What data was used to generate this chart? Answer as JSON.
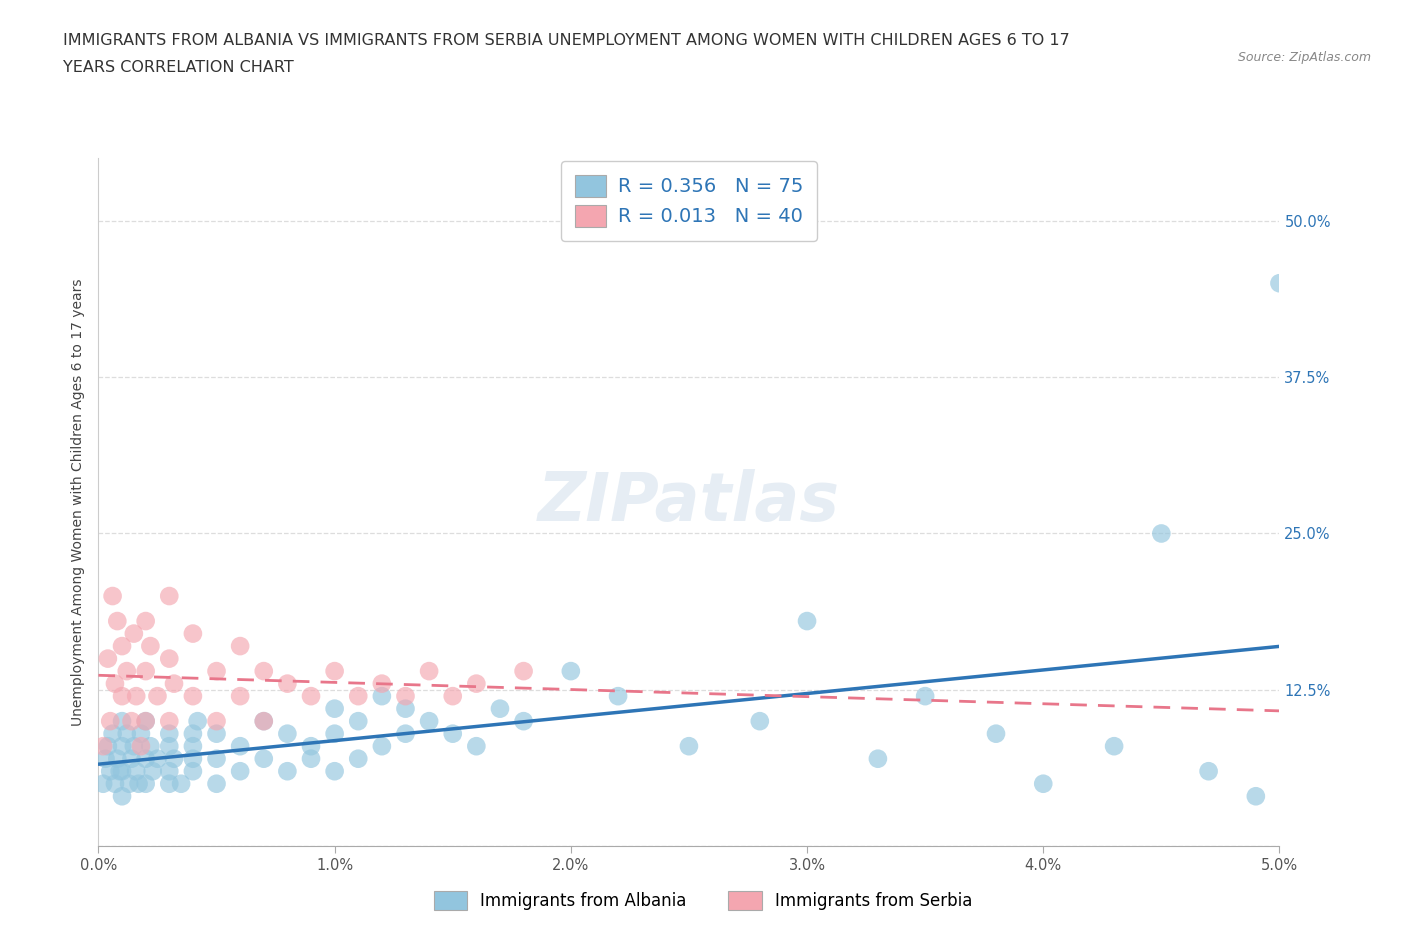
{
  "title_line1": "IMMIGRANTS FROM ALBANIA VS IMMIGRANTS FROM SERBIA UNEMPLOYMENT AMONG WOMEN WITH CHILDREN AGES 6 TO 17",
  "title_line2": "YEARS CORRELATION CHART",
  "source": "Source: ZipAtlas.com",
  "ylabel": "Unemployment Among Women with Children Ages 6 to 17 years",
  "xlim": [
    0.0,
    0.05
  ],
  "ylim": [
    0.0,
    0.55
  ],
  "xtick_positions": [
    0.0,
    0.01,
    0.02,
    0.03,
    0.04,
    0.05
  ],
  "xticklabels": [
    "0.0%",
    "1.0%",
    "2.0%",
    "3.0%",
    "4.0%",
    "5.0%"
  ],
  "ytick_positions": [
    0.0,
    0.125,
    0.25,
    0.375,
    0.5
  ],
  "yticklabels": [
    "",
    "12.5%",
    "25.0%",
    "37.5%",
    "50.0%"
  ],
  "albania_color": "#92c5de",
  "serbia_color": "#f4a6b0",
  "albania_line_color": "#2e75b6",
  "serbia_line_color": "#e8768a",
  "R_albania": 0.356,
  "N_albania": 75,
  "R_serbia": 0.013,
  "N_serbia": 40,
  "stat_text_color": "#2e75b6",
  "watermark": "ZIPatlas",
  "legend_label_albania": "Immigrants from Albania",
  "legend_label_serbia": "Immigrants from Serbia",
  "background_color": "#ffffff",
  "grid_color": "#dddddd",
  "title_fontsize": 11.5,
  "axis_label_fontsize": 10,
  "tick_fontsize": 10.5,
  "legend_fontsize": 14,
  "watermark_fontsize": 48,
  "watermark_color": "#c8d8e8",
  "watermark_alpha": 0.45,
  "albania_x": [
    0.0002,
    0.0003,
    0.0004,
    0.0005,
    0.0006,
    0.0007,
    0.0008,
    0.0009,
    0.001,
    0.001,
    0.001,
    0.001,
    0.0012,
    0.0013,
    0.0014,
    0.0015,
    0.0016,
    0.0017,
    0.0018,
    0.002,
    0.002,
    0.002,
    0.0022,
    0.0023,
    0.0025,
    0.003,
    0.003,
    0.003,
    0.003,
    0.0032,
    0.0035,
    0.004,
    0.004,
    0.004,
    0.004,
    0.0042,
    0.005,
    0.005,
    0.005,
    0.006,
    0.006,
    0.007,
    0.007,
    0.008,
    0.008,
    0.009,
    0.009,
    0.01,
    0.01,
    0.01,
    0.011,
    0.011,
    0.012,
    0.012,
    0.013,
    0.013,
    0.014,
    0.015,
    0.016,
    0.017,
    0.018,
    0.02,
    0.022,
    0.025,
    0.028,
    0.03,
    0.033,
    0.035,
    0.038,
    0.04,
    0.043,
    0.045,
    0.047,
    0.049,
    0.05
  ],
  "albania_y": [
    0.05,
    0.07,
    0.08,
    0.06,
    0.09,
    0.05,
    0.07,
    0.06,
    0.08,
    0.1,
    0.04,
    0.06,
    0.09,
    0.05,
    0.07,
    0.08,
    0.06,
    0.05,
    0.09,
    0.07,
    0.1,
    0.05,
    0.08,
    0.06,
    0.07,
    0.08,
    0.05,
    0.09,
    0.06,
    0.07,
    0.05,
    0.09,
    0.06,
    0.07,
    0.08,
    0.1,
    0.05,
    0.07,
    0.09,
    0.06,
    0.08,
    0.07,
    0.1,
    0.06,
    0.09,
    0.07,
    0.08,
    0.06,
    0.09,
    0.11,
    0.07,
    0.1,
    0.08,
    0.12,
    0.09,
    0.11,
    0.1,
    0.09,
    0.08,
    0.11,
    0.1,
    0.14,
    0.12,
    0.08,
    0.1,
    0.18,
    0.07,
    0.12,
    0.09,
    0.05,
    0.08,
    0.25,
    0.06,
    0.04,
    0.45
  ],
  "serbia_x": [
    0.0002,
    0.0004,
    0.0005,
    0.0006,
    0.0007,
    0.0008,
    0.001,
    0.001,
    0.0012,
    0.0014,
    0.0015,
    0.0016,
    0.0018,
    0.002,
    0.002,
    0.002,
    0.0022,
    0.0025,
    0.003,
    0.003,
    0.003,
    0.0032,
    0.004,
    0.004,
    0.005,
    0.005,
    0.006,
    0.006,
    0.007,
    0.007,
    0.008,
    0.009,
    0.01,
    0.011,
    0.012,
    0.013,
    0.014,
    0.015,
    0.016,
    0.018
  ],
  "serbia_y": [
    0.08,
    0.15,
    0.1,
    0.2,
    0.13,
    0.18,
    0.12,
    0.16,
    0.14,
    0.1,
    0.17,
    0.12,
    0.08,
    0.18,
    0.14,
    0.1,
    0.16,
    0.12,
    0.2,
    0.15,
    0.1,
    0.13,
    0.17,
    0.12,
    0.14,
    0.1,
    0.16,
    0.12,
    0.14,
    0.1,
    0.13,
    0.12,
    0.14,
    0.12,
    0.13,
    0.12,
    0.14,
    0.12,
    0.13,
    0.14
  ]
}
